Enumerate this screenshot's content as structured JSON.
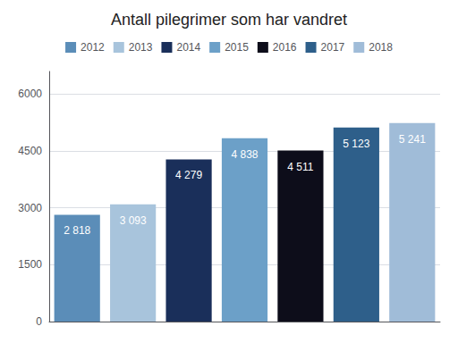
{
  "chart_data": {
    "type": "bar",
    "title": "Antall pilegrimer som har vandret",
    "categories": [
      "2012",
      "2013",
      "2014",
      "2015",
      "2016",
      "2017",
      "2018"
    ],
    "values": [
      2818,
      3093,
      4279,
      4838,
      4511,
      5123,
      5241
    ],
    "value_labels": [
      "2 818",
      "3 093",
      "4 279",
      "4 838",
      "4 511",
      "5 123",
      "5 241"
    ],
    "colors": [
      "#5b8db8",
      "#a8c4dc",
      "#1a2f5a",
      "#6ca0c8",
      "#0d0d1a",
      "#2e5f8a",
      "#a0bcd8"
    ],
    "ylim": [
      0,
      6600
    ],
    "yticks": [
      0,
      1500,
      3000,
      4500,
      6000
    ],
    "grid": true,
    "data_labels": true,
    "legend": "top",
    "tick_labels": "y"
  }
}
